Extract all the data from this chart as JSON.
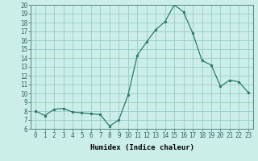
{
  "xlabel": "Humidex (Indice chaleur)",
  "ylabel": "",
  "x": [
    0,
    1,
    2,
    3,
    4,
    5,
    6,
    7,
    8,
    9,
    10,
    11,
    12,
    13,
    14,
    15,
    16,
    17,
    18,
    19,
    20,
    21,
    22,
    23
  ],
  "y": [
    8.0,
    7.5,
    8.2,
    8.3,
    7.9,
    7.8,
    7.7,
    7.6,
    6.3,
    7.0,
    9.8,
    14.3,
    15.8,
    17.2,
    18.1,
    20.0,
    19.2,
    16.8,
    13.7,
    13.2,
    10.8,
    11.5,
    11.3,
    10.1
  ],
  "line_color": "#2e7b6e",
  "marker": "o",
  "marker_size": 2.0,
  "bg_color": "#cceee8",
  "grid_color": "#99cccc",
  "xlim": [
    -0.5,
    23.5
  ],
  "ylim": [
    6,
    20
  ],
  "yticks": [
    6,
    7,
    8,
    9,
    10,
    11,
    12,
    13,
    14,
    15,
    16,
    17,
    18,
    19,
    20
  ],
  "xtick_labels": [
    "0",
    "1",
    "2",
    "3",
    "4",
    "5",
    "6",
    "7",
    "8",
    "9",
    "10",
    "11",
    "12",
    "13",
    "14",
    "15",
    "16",
    "17",
    "18",
    "19",
    "20",
    "21",
    "22",
    "23"
  ],
  "label_fontsize": 6.5,
  "tick_fontsize": 5.5
}
